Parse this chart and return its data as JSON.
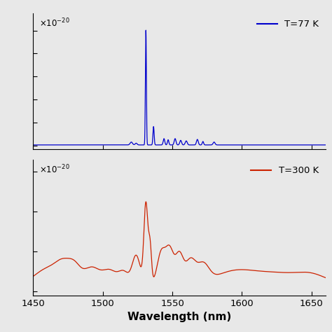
{
  "xlabel": "Wavelength (nm)",
  "xlim": [
    1450,
    1660
  ],
  "xticks": [
    1450,
    1500,
    1550,
    1600,
    1650
  ],
  "top_color": "#0000CC",
  "bottom_color": "#CC2200",
  "top_label": "T=77 K",
  "bottom_label": "T=300 K",
  "bg_color": "#E8E8E8",
  "linewidth": 0.9,
  "figsize": [
    4.74,
    4.74
  ],
  "dpi": 100
}
